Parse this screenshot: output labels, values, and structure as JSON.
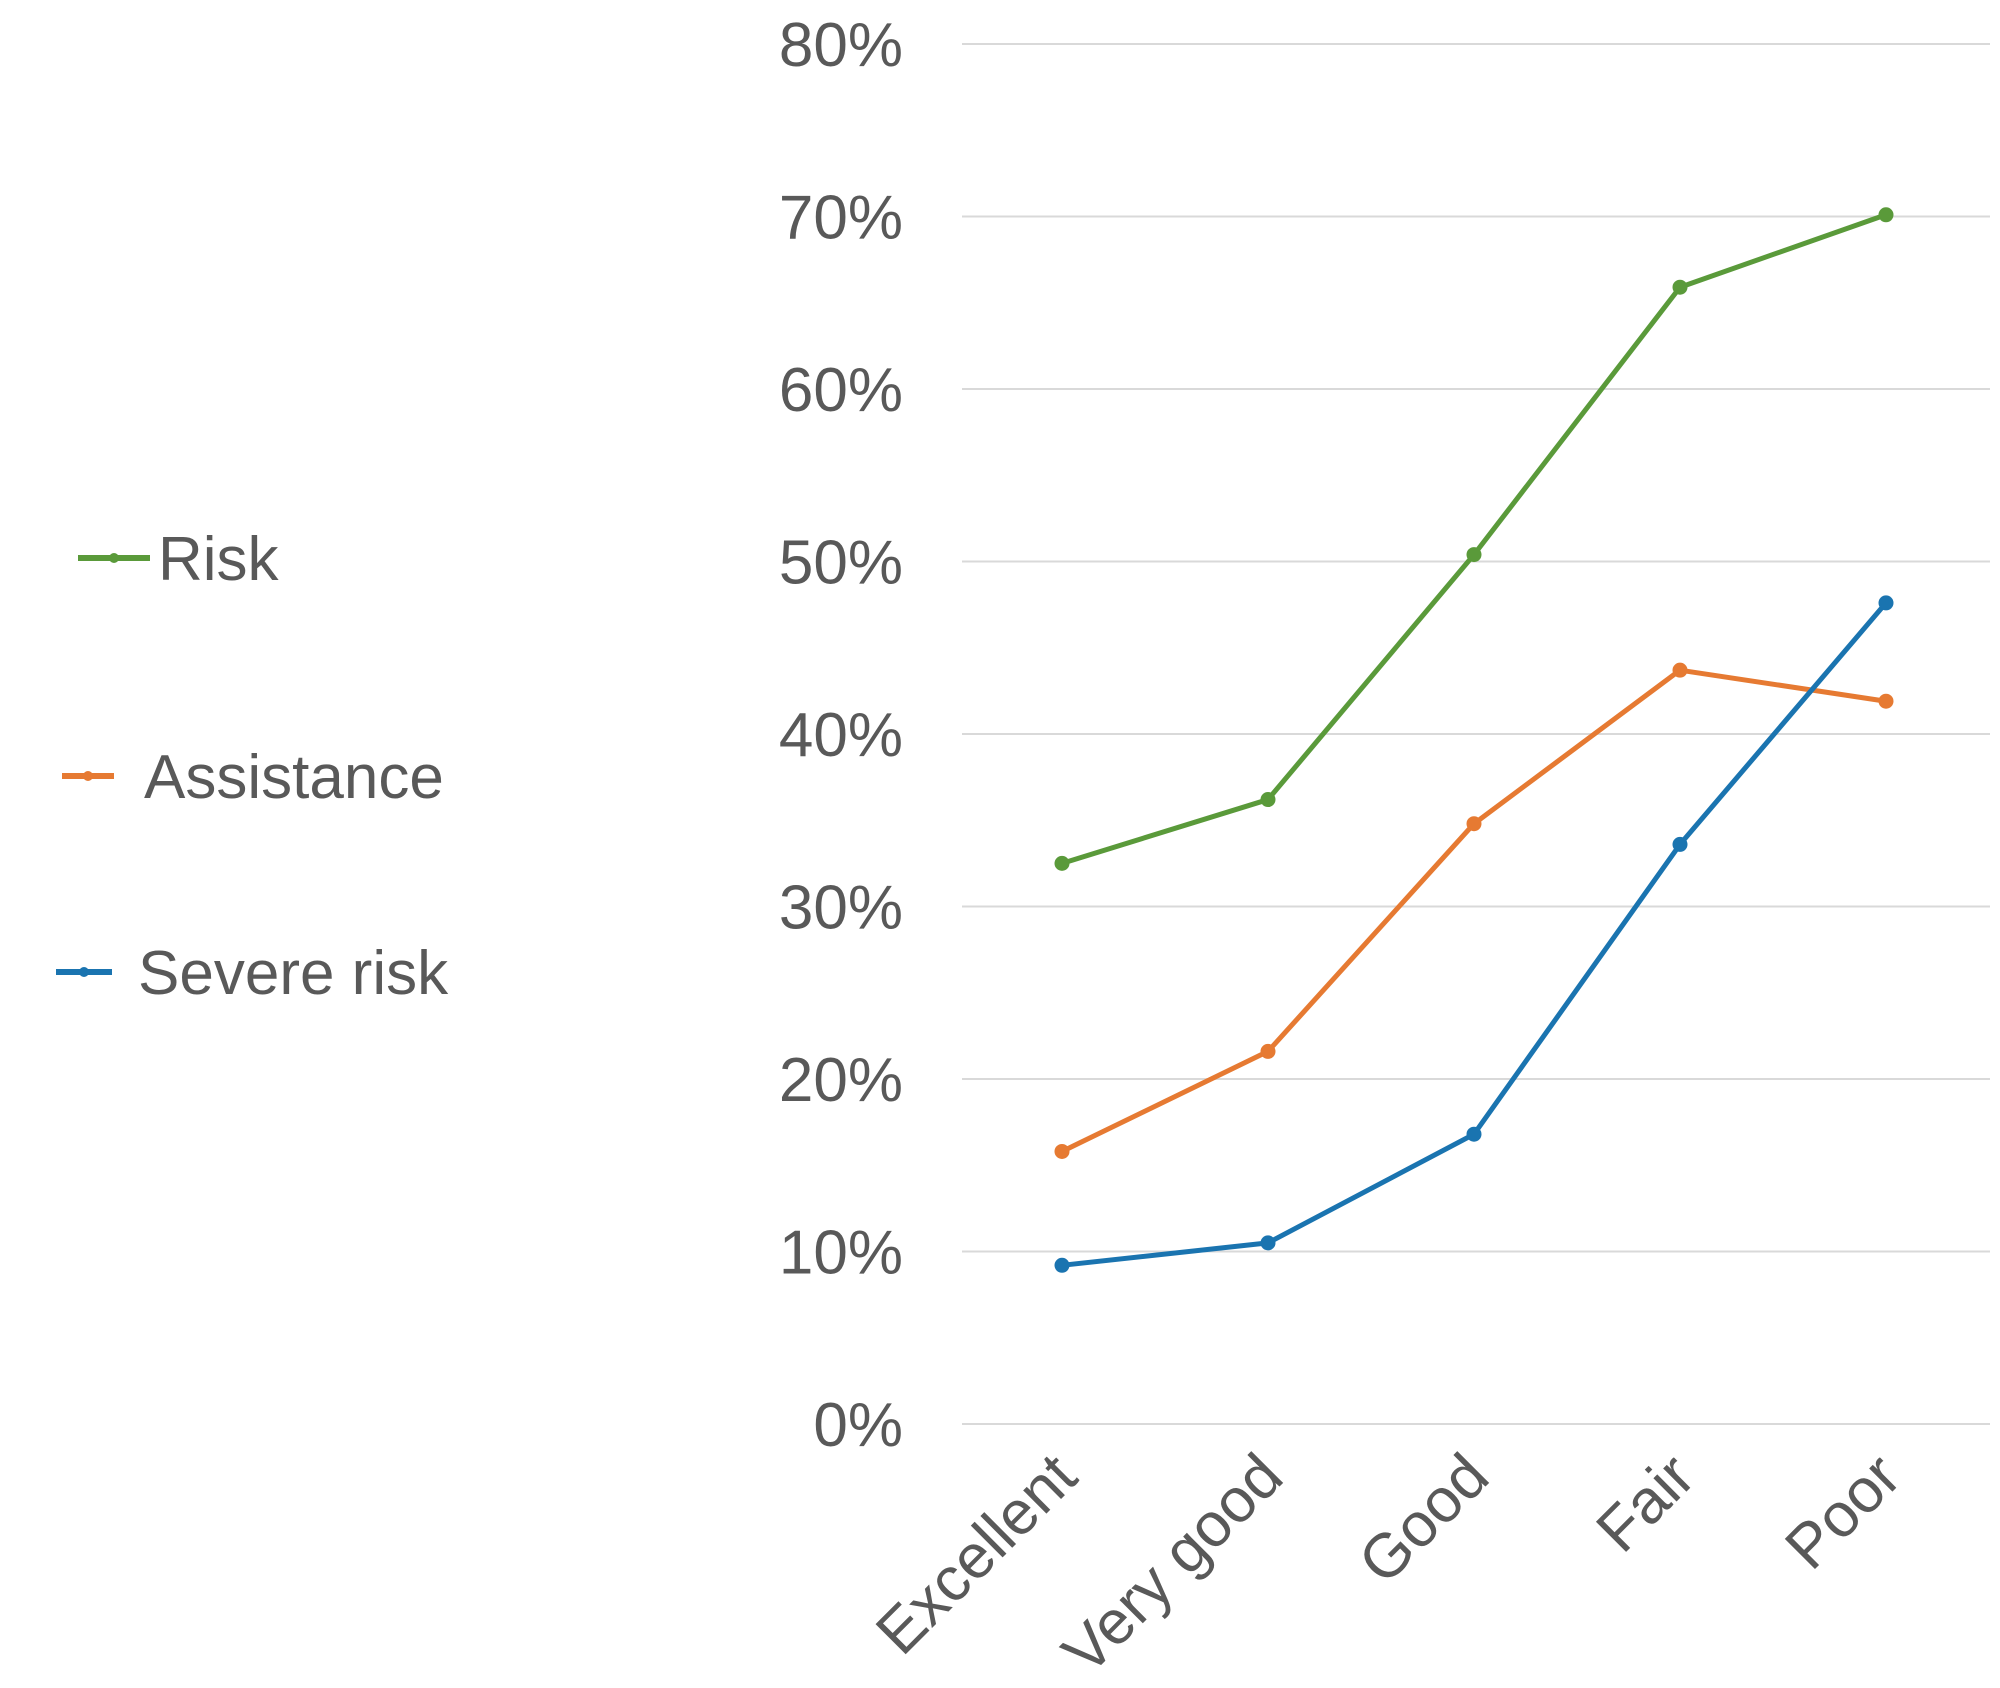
{
  "chart_data": {
    "type": "line",
    "categories": [
      "Excellent",
      "Very good",
      "Good",
      "Fair",
      "Poor"
    ],
    "series": [
      {
        "name": "Risk",
        "color": "#5a9a3a",
        "values": [
          32.5,
          36.2,
          50.4,
          65.9,
          70.1
        ]
      },
      {
        "name": "Assistance",
        "color": "#e67a32",
        "values": [
          15.8,
          21.6,
          34.8,
          43.7,
          41.9
        ]
      },
      {
        "name": "Severe risk",
        "color": "#1a74b0",
        "values": [
          9.2,
          10.5,
          16.8,
          33.6,
          47.6
        ]
      }
    ],
    "y_ticks": [
      "0%",
      "10%",
      "20%",
      "30%",
      "40%",
      "50%",
      "60%",
      "70%",
      "80%"
    ],
    "ylim": [
      0,
      80
    ],
    "grid": true,
    "legend_position": "left",
    "colors": {
      "tick_text": "#595959",
      "gridline": "#d9d9d9"
    }
  }
}
